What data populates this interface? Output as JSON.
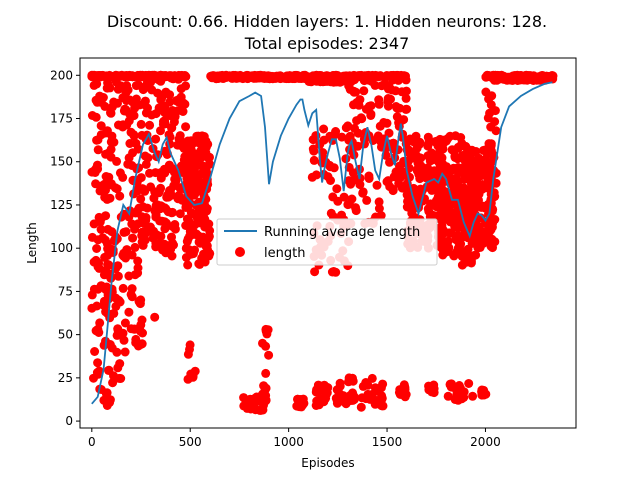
{
  "chart_data": {
    "type": "scatter",
    "title_lines": [
      "Discount: 0.66. Hidden layers: 1. Hidden neurons: 128.",
      "Total episodes: 2347"
    ],
    "xlabel": "Episodes",
    "ylabel": "Length",
    "xlim": [
      -60,
      2460
    ],
    "ylim": [
      -4,
      210
    ],
    "x_ticks": [
      0,
      500,
      1000,
      1500,
      2000
    ],
    "y_ticks": [
      0,
      25,
      50,
      75,
      100,
      125,
      150,
      175,
      200
    ],
    "legend_position": "center",
    "series": [
      {
        "name": "Running average length",
        "kind": "line",
        "color": "#1f77b4",
        "x": [
          0,
          30,
          60,
          80,
          100,
          130,
          160,
          190,
          220,
          260,
          290,
          320,
          340,
          360,
          380,
          400,
          440,
          480,
          520,
          560,
          600,
          650,
          700,
          750,
          800,
          830,
          860,
          880,
          900,
          920,
          960,
          1000,
          1040,
          1060,
          1070,
          1080,
          1100,
          1120,
          1140,
          1160,
          1170,
          1180,
          1200,
          1220,
          1240,
          1260,
          1280,
          1300,
          1310,
          1320,
          1340,
          1360,
          1380,
          1400,
          1420,
          1440,
          1460,
          1480,
          1500,
          1520,
          1540,
          1560,
          1570,
          1580,
          1600,
          1630,
          1660,
          1700,
          1740,
          1760,
          1780,
          1800,
          1830,
          1860,
          1890,
          1920,
          1940,
          1960,
          1980,
          2000,
          2020,
          2040,
          2080,
          2120,
          2180,
          2240,
          2300,
          2340
        ],
        "y": [
          10,
          14,
          30,
          55,
          80,
          110,
          125,
          120,
          140,
          160,
          166,
          155,
          150,
          160,
          164,
          155,
          145,
          130,
          125,
          126,
          140,
          160,
          175,
          185,
          188,
          190,
          188,
          170,
          137,
          150,
          165,
          175,
          183,
          186,
          186,
          180,
          171,
          178,
          180,
          150,
          138,
          145,
          155,
          163,
          163,
          152,
          133,
          155,
          160,
          162,
          150,
          140,
          160,
          170,
          160,
          145,
          140,
          155,
          165,
          155,
          148,
          165,
          172,
          165,
          145,
          130,
          120,
          138,
          140,
          138,
          143,
          140,
          128,
          128,
          115,
          107,
          115,
          120,
          119,
          116,
          120,
          140,
          170,
          182,
          188,
          192,
          195,
          196
        ]
      },
      {
        "name": "length",
        "kind": "scatter",
        "color": "#ff0000",
        "clusters": [
          {
            "x": [
              0,
              100
            ],
            "y": [
              8,
              200
            ],
            "n": 170
          },
          {
            "x": [
              100,
              200
            ],
            "y": [
              20,
              200
            ],
            "n": 120
          },
          {
            "x": [
              200,
              260
            ],
            "y": [
              40,
              200
            ],
            "n": 80
          },
          {
            "x": [
              260,
              340
            ],
            "y": [
              100,
              200
            ],
            "n": 80
          },
          {
            "x": [
              340,
              420
            ],
            "y": [
              95,
              200
            ],
            "n": 110
          },
          {
            "x": [
              420,
              480
            ],
            "y": [
              110,
              200
            ],
            "n": 70
          },
          {
            "x": [
              480,
              600
            ],
            "y": [
              90,
              165
            ],
            "n": 170
          },
          {
            "x": [
              600,
              1100
            ],
            "y": [
              198,
              200
            ],
            "n": 230
          },
          {
            "x": [
              1100,
              1320
            ],
            "y": [
              196,
              200
            ],
            "n": 130
          },
          {
            "x": [
              1120,
              1320
            ],
            "y": [
              85,
              170
            ],
            "n": 70
          },
          {
            "x": [
              1300,
              1480
            ],
            "y": [
              110,
              200
            ],
            "n": 110
          },
          {
            "x": [
              1480,
              1600
            ],
            "y": [
              130,
              200
            ],
            "n": 90
          },
          {
            "x": [
              1600,
              1780
            ],
            "y": [
              100,
              165
            ],
            "n": 160
          },
          {
            "x": [
              1760,
              1880
            ],
            "y": [
              95,
              165
            ],
            "n": 150
          },
          {
            "x": [
              1880,
              1960
            ],
            "y": [
              90,
              160
            ],
            "n": 110
          },
          {
            "x": [
              1960,
              2040
            ],
            "y": [
              100,
              160
            ],
            "n": 80
          },
          {
            "x": [
              2040,
              2347
            ],
            "y": [
              197,
              200
            ],
            "n": 150
          },
          {
            "x": [
              2000,
              2060
            ],
            "y": [
              100,
              200
            ],
            "n": 50
          },
          {
            "x": [
              770,
              880
            ],
            "y": [
              6,
              14
            ],
            "n": 28
          },
          {
            "x": [
              860,
              900
            ],
            "y": [
              8,
              58
            ],
            "n": 16
          },
          {
            "x": [
              1040,
              1080
            ],
            "y": [
              8,
              13
            ],
            "n": 12
          },
          {
            "x": [
              1140,
              1200
            ],
            "y": [
              8,
              22
            ],
            "n": 22
          },
          {
            "x": [
              1240,
              1280
            ],
            "y": [
              10,
              22
            ],
            "n": 14
          },
          {
            "x": [
              1290,
              1340
            ],
            "y": [
              10,
              25
            ],
            "n": 18
          },
          {
            "x": [
              1360,
              1480
            ],
            "y": [
              8,
              25
            ],
            "n": 24
          },
          {
            "x": [
              1560,
              1600
            ],
            "y": [
              12,
              22
            ],
            "n": 10
          },
          {
            "x": [
              1700,
              1740
            ],
            "y": [
              16,
              22
            ],
            "n": 8
          },
          {
            "x": [
              1810,
              1940
            ],
            "y": [
              12,
              22
            ],
            "n": 20
          },
          {
            "x": [
              1980,
              2020
            ],
            "y": [
              12,
              18
            ],
            "n": 6
          },
          {
            "x": [
              300,
              320
            ],
            "y": [
              60,
              62
            ],
            "n": 1
          },
          {
            "x": [
              470,
              550
            ],
            "y": [
              20,
              45
            ],
            "n": 8
          }
        ]
      }
    ]
  }
}
